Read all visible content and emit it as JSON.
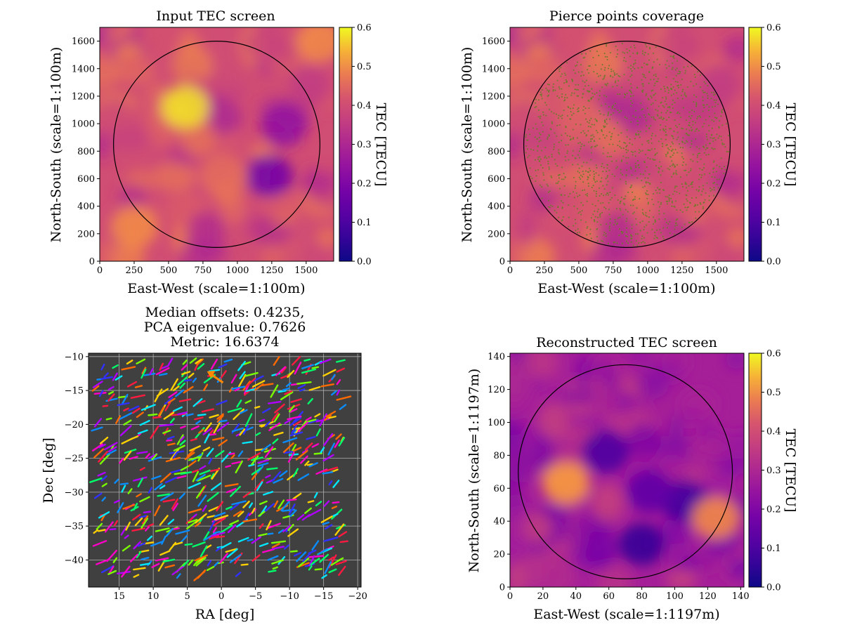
{
  "figure": {
    "background": "#ffffff"
  },
  "chart_data": [
    {
      "id": "input-tec",
      "type": "heatmap",
      "title": "Input TEC screen",
      "xlabel": "East-West (scale=1:100m)",
      "ylabel": "North-South (scale=1:100m)",
      "xlim": [
        0,
        1700
      ],
      "ylim": [
        0,
        1700
      ],
      "xticks": [
        "0",
        "250",
        "500",
        "750",
        "1000",
        "1250",
        "1500"
      ],
      "yticks": [
        "0",
        "200",
        "400",
        "600",
        "800",
        "1000",
        "1200",
        "1400",
        "1600"
      ],
      "circle": {
        "cx": 850,
        "cy": 850,
        "r": 750
      },
      "colorbar": {
        "label": "TEC [TECU]",
        "range": [
          0,
          0.6
        ],
        "ticks": [
          "0.0",
          "0.1",
          "0.2",
          "0.3",
          "0.4",
          "0.5",
          "0.6"
        ],
        "colormap": "plasma"
      },
      "features": [
        {
          "x": 620,
          "y": 1120,
          "tec": 0.58
        },
        {
          "x": 1230,
          "y": 620,
          "tec": 0.18
        },
        {
          "x": 1340,
          "y": 1000,
          "tec": 0.24
        },
        {
          "x": 250,
          "y": 250,
          "tec": 0.5
        },
        {
          "x": 900,
          "y": 620,
          "tec": 0.46
        },
        {
          "x": 1600,
          "y": 1600,
          "tec": 0.5
        }
      ]
    },
    {
      "id": "pierce-points",
      "type": "heatmap",
      "title": "Pierce points coverage",
      "xlabel": "East-West (scale=1:100m)",
      "ylabel": "North-South (scale=1:100m)",
      "xlim": [
        0,
        1700
      ],
      "ylim": [
        0,
        1700
      ],
      "xticks": [
        "0",
        "250",
        "500",
        "750",
        "1000",
        "1250",
        "1500"
      ],
      "yticks": [
        "0",
        "200",
        "400",
        "600",
        "800",
        "1000",
        "1200",
        "1400",
        "1600"
      ],
      "circle": {
        "cx": 850,
        "cy": 850,
        "r": 750
      },
      "colorbar": {
        "label": "TEC [TECU]",
        "range": [
          0,
          0.6
        ],
        "ticks": [
          "0.0",
          "0.1",
          "0.2",
          "0.3",
          "0.4",
          "0.5",
          "0.6"
        ],
        "colormap": "plasma"
      },
      "marker_color": "#6b7a2a"
    },
    {
      "id": "offsets",
      "type": "scatter",
      "title": "Median offsets: 0.4235,\nPCA eigenvalue: 0.7626\nMetric: 16.6374",
      "xlabel": "RA [deg]",
      "ylabel": "Dec [deg]",
      "xlim": [
        19.5,
        -20.5
      ],
      "ylim": [
        -44,
        -9.5
      ],
      "xticks": [
        "15",
        "10",
        "5",
        "0",
        "−5",
        "−10",
        "−15",
        "−20"
      ],
      "yticks": [
        "−10",
        "−15",
        "−20",
        "−25",
        "−30",
        "−35",
        "−40"
      ],
      "grid": true,
      "background": "#404040",
      "arrow_colors": [
        "#ff1a40",
        "#ff6a00",
        "#ffd000",
        "#7aff00",
        "#00ff6a",
        "#00e8ff",
        "#0a8cff",
        "#3030ff",
        "#b000ff",
        "#ff00c8"
      ],
      "highlight_arrow": {
        "ra": 1.2,
        "dec": -12.8,
        "color": "#ff8800"
      }
    },
    {
      "id": "reconstructed-tec",
      "type": "heatmap",
      "title": "Reconstructed TEC screen",
      "xlabel": "East-West (scale=1:1197m)",
      "ylabel": "North-South (scale=1:1197m)",
      "xlim": [
        0,
        142
      ],
      "ylim": [
        0,
        142
      ],
      "xticks": [
        "0",
        "20",
        "40",
        "60",
        "80",
        "100",
        "120",
        "140"
      ],
      "yticks": [
        "0",
        "20",
        "40",
        "60",
        "80",
        "100",
        "120",
        "140"
      ],
      "circle": {
        "cx": 70,
        "cy": 70,
        "r": 65
      },
      "colorbar": {
        "label": "TEC [TECU]",
        "range": [
          0,
          0.6
        ],
        "ticks": [
          "0.0",
          "0.1",
          "0.2",
          "0.3",
          "0.4",
          "0.5",
          "0.6"
        ],
        "colormap": "plasma"
      },
      "features": [
        {
          "x": 58,
          "y": 82,
          "tec": 0.1
        },
        {
          "x": 80,
          "y": 26,
          "tec": 0.06
        },
        {
          "x": 106,
          "y": 52,
          "tec": 0.08
        },
        {
          "x": 85,
          "y": 58,
          "tec": 0.14
        },
        {
          "x": 34,
          "y": 63,
          "tec": 0.52
        },
        {
          "x": 125,
          "y": 42,
          "tec": 0.5
        }
      ]
    }
  ]
}
